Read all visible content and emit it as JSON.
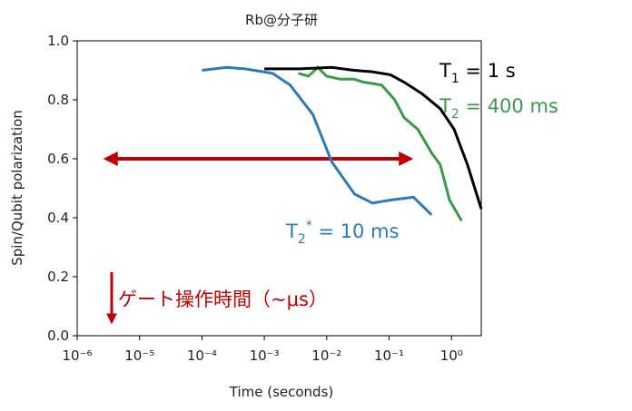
{
  "chart_data": {
    "type": "line",
    "title": "Rb@分子研",
    "x_label": "Time (seconds)",
    "y_label": "Spin/Qubit polarization",
    "log_x": true,
    "xlim": [
      1e-06,
      3.0
    ],
    "ylim": [
      0,
      1
    ],
    "xticks": [
      {
        "value": 1e-06,
        "label": "10⁻⁶"
      },
      {
        "value": 1e-05,
        "label": "10⁻⁵"
      },
      {
        "value": 0.0001,
        "label": "10⁻⁴"
      },
      {
        "value": 0.001,
        "label": "10⁻³"
      },
      {
        "value": 0.01,
        "label": "10⁻²"
      },
      {
        "value": 0.1,
        "label": "10⁻¹"
      },
      {
        "value": 1,
        "label": "10⁰"
      }
    ],
    "yticks": [
      {
        "value": 0,
        "label": "0.0"
      },
      {
        "value": 0.2,
        "label": "0.2"
      },
      {
        "value": 0.4,
        "label": "0.4"
      },
      {
        "value": 0.6,
        "label": "0.6"
      },
      {
        "value": 0.8,
        "label": "0.8"
      },
      {
        "value": 1,
        "label": "1.0"
      }
    ],
    "series": [
      {
        "color": "#2b7bb9",
        "x": [
          0.0001,
          0.00025,
          0.00049,
          0.00135,
          0.0026,
          0.006,
          0.012,
          0.028,
          0.054,
          0.105,
          0.245,
          0.48
        ],
        "values": [
          0.9,
          0.91,
          0.905,
          0.89,
          0.85,
          0.75,
          0.59,
          0.48,
          0.45,
          0.46,
          0.47,
          0.41
        ]
      },
      {
        "color": "#3a9a48",
        "x": [
          0.0035,
          0.0051,
          0.0072,
          0.01,
          0.0166,
          0.0275,
          0.039,
          0.076,
          0.123,
          0.173,
          0.288,
          0.48,
          0.66,
          0.93,
          1.45
        ],
        "values": [
          0.89,
          0.88,
          0.91,
          0.88,
          0.87,
          0.87,
          0.86,
          0.85,
          0.8,
          0.74,
          0.7,
          0.62,
          0.58,
          0.46,
          0.39
        ]
      },
      {
        "color": "#000000",
        "x": [
          0.001,
          0.0037,
          0.012,
          0.0275,
          0.054,
          0.105,
          0.173,
          0.34,
          0.66,
          1.1,
          1.8,
          3.0
        ],
        "values": [
          0.905,
          0.905,
          0.91,
          0.9,
          0.895,
          0.885,
          0.86,
          0.82,
          0.77,
          0.7,
          0.58,
          0.43
        ]
      }
    ],
    "annotations": [
      {
        "color": "#000000",
        "main": "T",
        "sub": "1",
        "rest": " = 1 s"
      },
      {
        "color": "#3a9a48",
        "main": "T",
        "sub": "2",
        "rest": " = 400 ms"
      },
      {
        "color": "#2b7bb9",
        "main": "T",
        "sub": "2",
        "sup": "*",
        "rest": " = 10 ms"
      },
      {
        "color": "#c00000",
        "main": "ゲート操作時間（~μs）"
      }
    ]
  }
}
